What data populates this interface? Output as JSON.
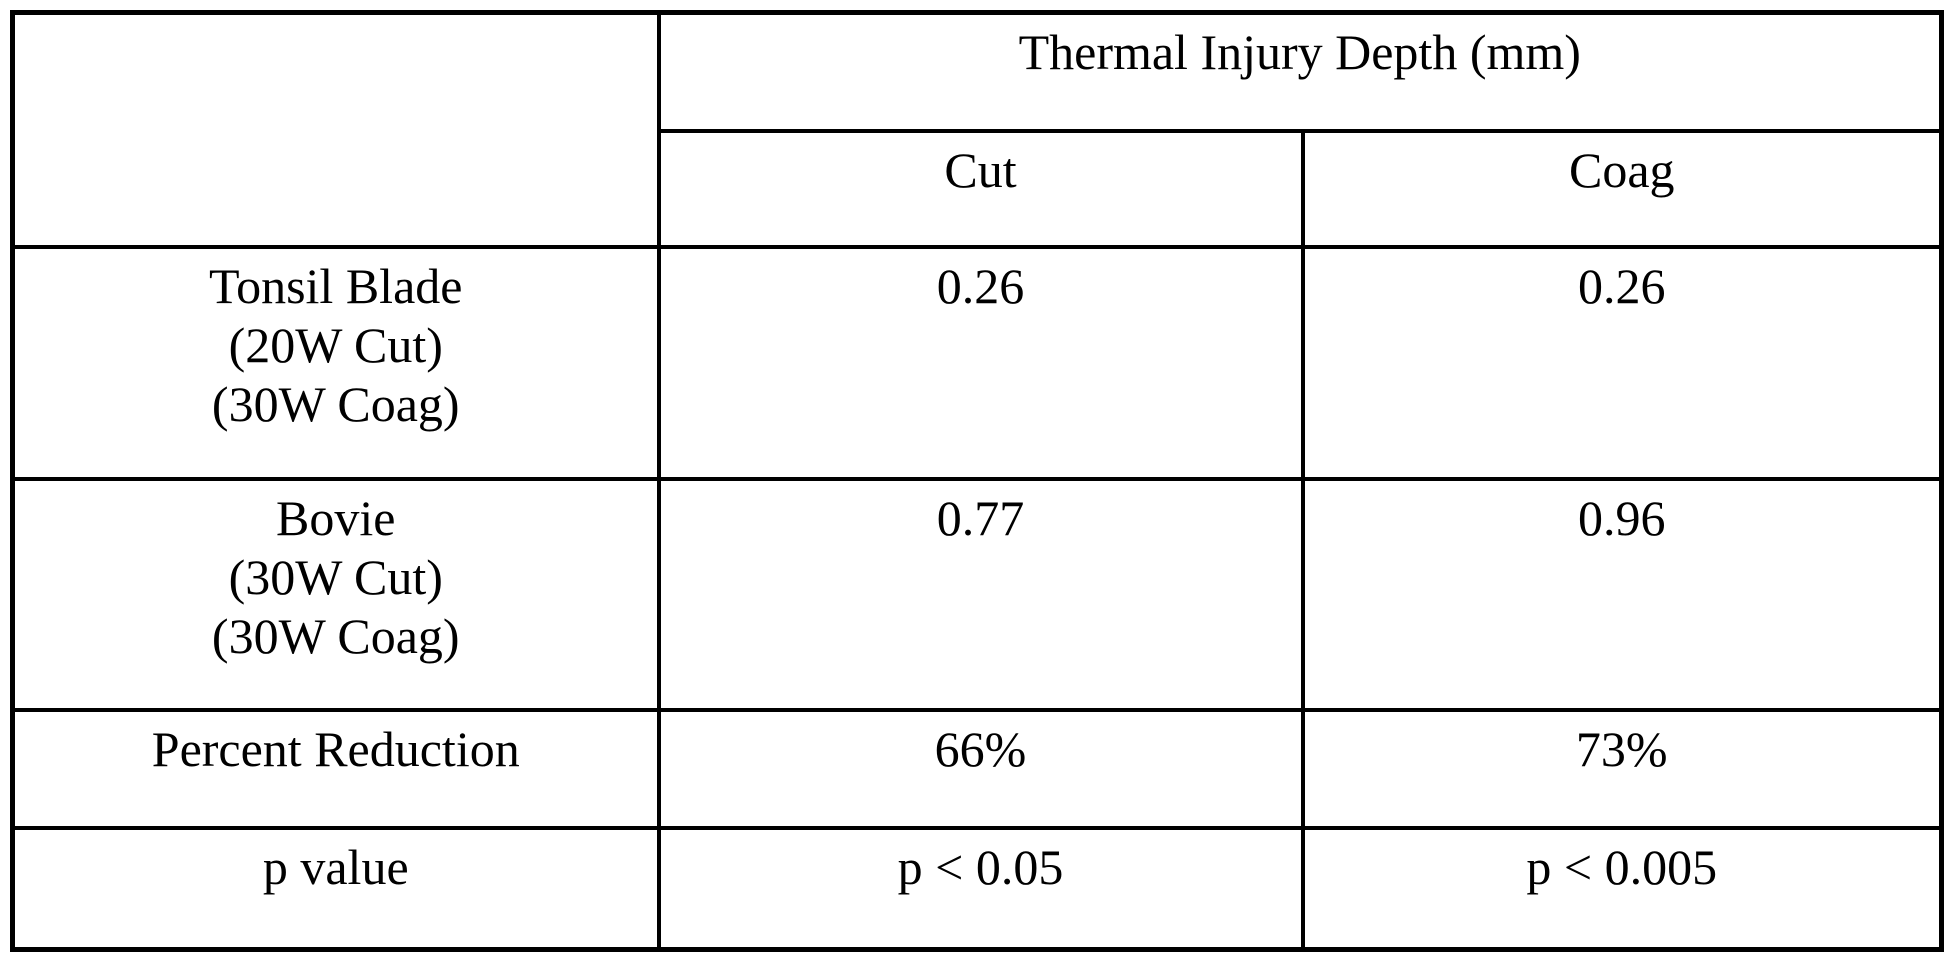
{
  "table": {
    "title": "Thermal Injury Depth (mm)",
    "columns": [
      "Cut",
      "Coag"
    ],
    "rows": [
      {
        "label_lines": [
          "Tonsil Blade",
          "(20W Cut)",
          "(30W Coag)"
        ],
        "cut": "0.26",
        "coag": "0.26"
      },
      {
        "label_lines": [
          "Bovie",
          "(30W Cut)",
          "(30W Coag)"
        ],
        "cut": "0.77",
        "coag": "0.96"
      },
      {
        "label_lines": [
          "Percent Reduction"
        ],
        "cut": "66%",
        "coag": "73%"
      },
      {
        "label_lines": [
          "p value"
        ],
        "cut": "p < 0.05",
        "coag": "p < 0.005"
      }
    ]
  },
  "chart_data": {
    "type": "table",
    "title": "Thermal Injury Depth (mm)",
    "columns": [
      "Cut",
      "Coag"
    ],
    "rows": [
      {
        "label": "Tonsil Blade (20W Cut) (30W Coag)",
        "cut_mm": 0.26,
        "coag_mm": 0.26
      },
      {
        "label": "Bovie (30W Cut) (30W Coag)",
        "cut_mm": 0.77,
        "coag_mm": 0.96
      },
      {
        "label": "Percent Reduction",
        "cut": "66%",
        "coag": "73%"
      },
      {
        "label": "p value",
        "cut": "p < 0.05",
        "coag": "p < 0.005"
      }
    ]
  }
}
